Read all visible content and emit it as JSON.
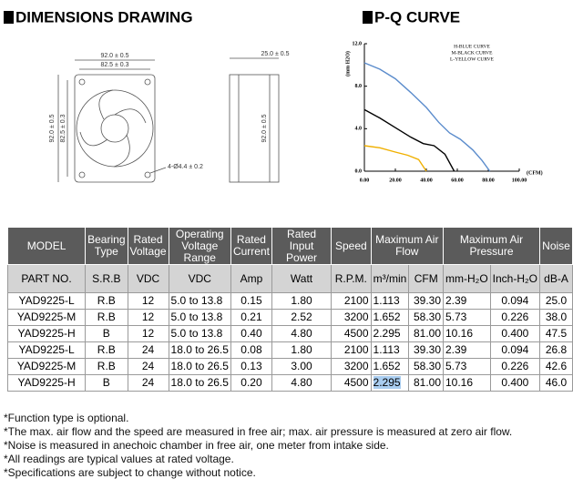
{
  "dimensions": {
    "title": "DIMENSIONS DRAWING",
    "labels": [
      "92.0 ± 0.5",
      "82.5 ± 0.3",
      "92.0 ± 0.5",
      "82.5 ± 0.3",
      "4-Ø4.4 ± 0.2",
      "25.0 ± 0.5",
      "92.0 ± 0.5"
    ]
  },
  "pq_curve": {
    "title": "P-Q CURVE",
    "chart": {
      "type": "line",
      "y_label": "(mm H2O)",
      "x_label": "(CFM)",
      "xlim": [
        0,
        100
      ],
      "ylim": [
        0,
        12
      ],
      "xticks": [
        {
          "value": 0,
          "label": "0.00"
        },
        {
          "value": 20,
          "label": "20.00"
        },
        {
          "value": 40,
          "label": "40.00"
        },
        {
          "value": 60,
          "label": "60.00"
        },
        {
          "value": 80,
          "label": "80.00"
        },
        {
          "value": 100,
          "label": "100.00"
        }
      ],
      "yticks": [
        {
          "value": 0,
          "label": "0.0"
        },
        {
          "value": 4,
          "label": "4.0"
        },
        {
          "value": 8,
          "label": "8.0"
        },
        {
          "value": 12,
          "label": "12.0"
        }
      ],
      "series": [
        {
          "name": "H-BLUE CURVE",
          "color": "#5b8ccc",
          "x": [
            0,
            10,
            20,
            30,
            40,
            48,
            55,
            62,
            70,
            76,
            81
          ],
          "y": [
            10.2,
            9.6,
            8.7,
            7.4,
            6.0,
            4.6,
            3.6,
            3.0,
            2.0,
            1.0,
            0
          ]
        },
        {
          "name": "M-BLACK CURVE",
          "color": "#000000",
          "x": [
            0,
            10,
            20,
            30,
            38,
            45,
            52,
            58
          ],
          "y": [
            5.8,
            5.0,
            4.1,
            3.2,
            2.6,
            2.4,
            1.6,
            0
          ]
        },
        {
          "name": "L-YELLOW CURVE",
          "color": "#f0b000",
          "x": [
            0,
            10,
            20,
            28,
            35,
            40
          ],
          "y": [
            2.4,
            2.2,
            1.8,
            1.5,
            1.1,
            0
          ]
        }
      ]
    }
  },
  "table": {
    "header_top": [
      "MODEL",
      "Bearing Type",
      "Rated Voltage",
      "Operating Voltage Range",
      "Rated Current",
      "Rated Input Power",
      "Speed",
      "Maximum Air Flow",
      "Maximum Air Pressure",
      "Noise"
    ],
    "header_sub": [
      "PART NO.",
      "S.R.B",
      "VDC",
      "VDC",
      "Amp",
      "Watt",
      "R.P.M.",
      "m³/min",
      "CFM",
      "mm-H₂O",
      "Inch-H₂O",
      "dB-A"
    ],
    "rows": [
      [
        "YAD9225-L",
        "R.B",
        "12",
        "5.0 to 13.8",
        "0.15",
        "1.80",
        "2100",
        "1.113",
        "39.30",
        "2.39",
        "0.094",
        "25.0"
      ],
      [
        "YAD9225-M",
        "R.B",
        "12",
        "5.0 to 13.8",
        "0.21",
        "2.52",
        "3200",
        "1.652",
        "58.30",
        "5.73",
        "0.226",
        "38.0"
      ],
      [
        "YAD9225-H",
        "B",
        "12",
        "5.0 to 13.8",
        "0.40",
        "4.80",
        "4500",
        "2.295",
        "81.00",
        "10.16",
        "0.400",
        "47.5"
      ],
      [
        "YAD9225-L",
        "R.B",
        "24",
        "18.0 to 26.5",
        "0.08",
        "1.80",
        "2100",
        "1.113",
        "39.30",
        "2.39",
        "0.094",
        "26.8"
      ],
      [
        "YAD9225-M",
        "R.B",
        "24",
        "18.0 to 26.5",
        "0.13",
        "3.00",
        "3200",
        "1.652",
        "58.30",
        "5.73",
        "0.226",
        "42.6"
      ],
      [
        "YAD9225-H",
        "B",
        "24",
        "18.0 to 26.5",
        "0.20",
        "4.80",
        "4500",
        "2.295",
        "81.00",
        "10.16",
        "0.400",
        "46.0"
      ]
    ]
  },
  "notes": [
    "*Function type is optional.",
    "*The max. air flow and the speed are measured in free air; max. air pressure is measured at zero air flow.",
    "*Noise is measured in anechoic chamber in free air, one meter from intake side.",
    "*All readings are typical values at rated voltage.",
    "*Specifications are subject to change without notice."
  ]
}
